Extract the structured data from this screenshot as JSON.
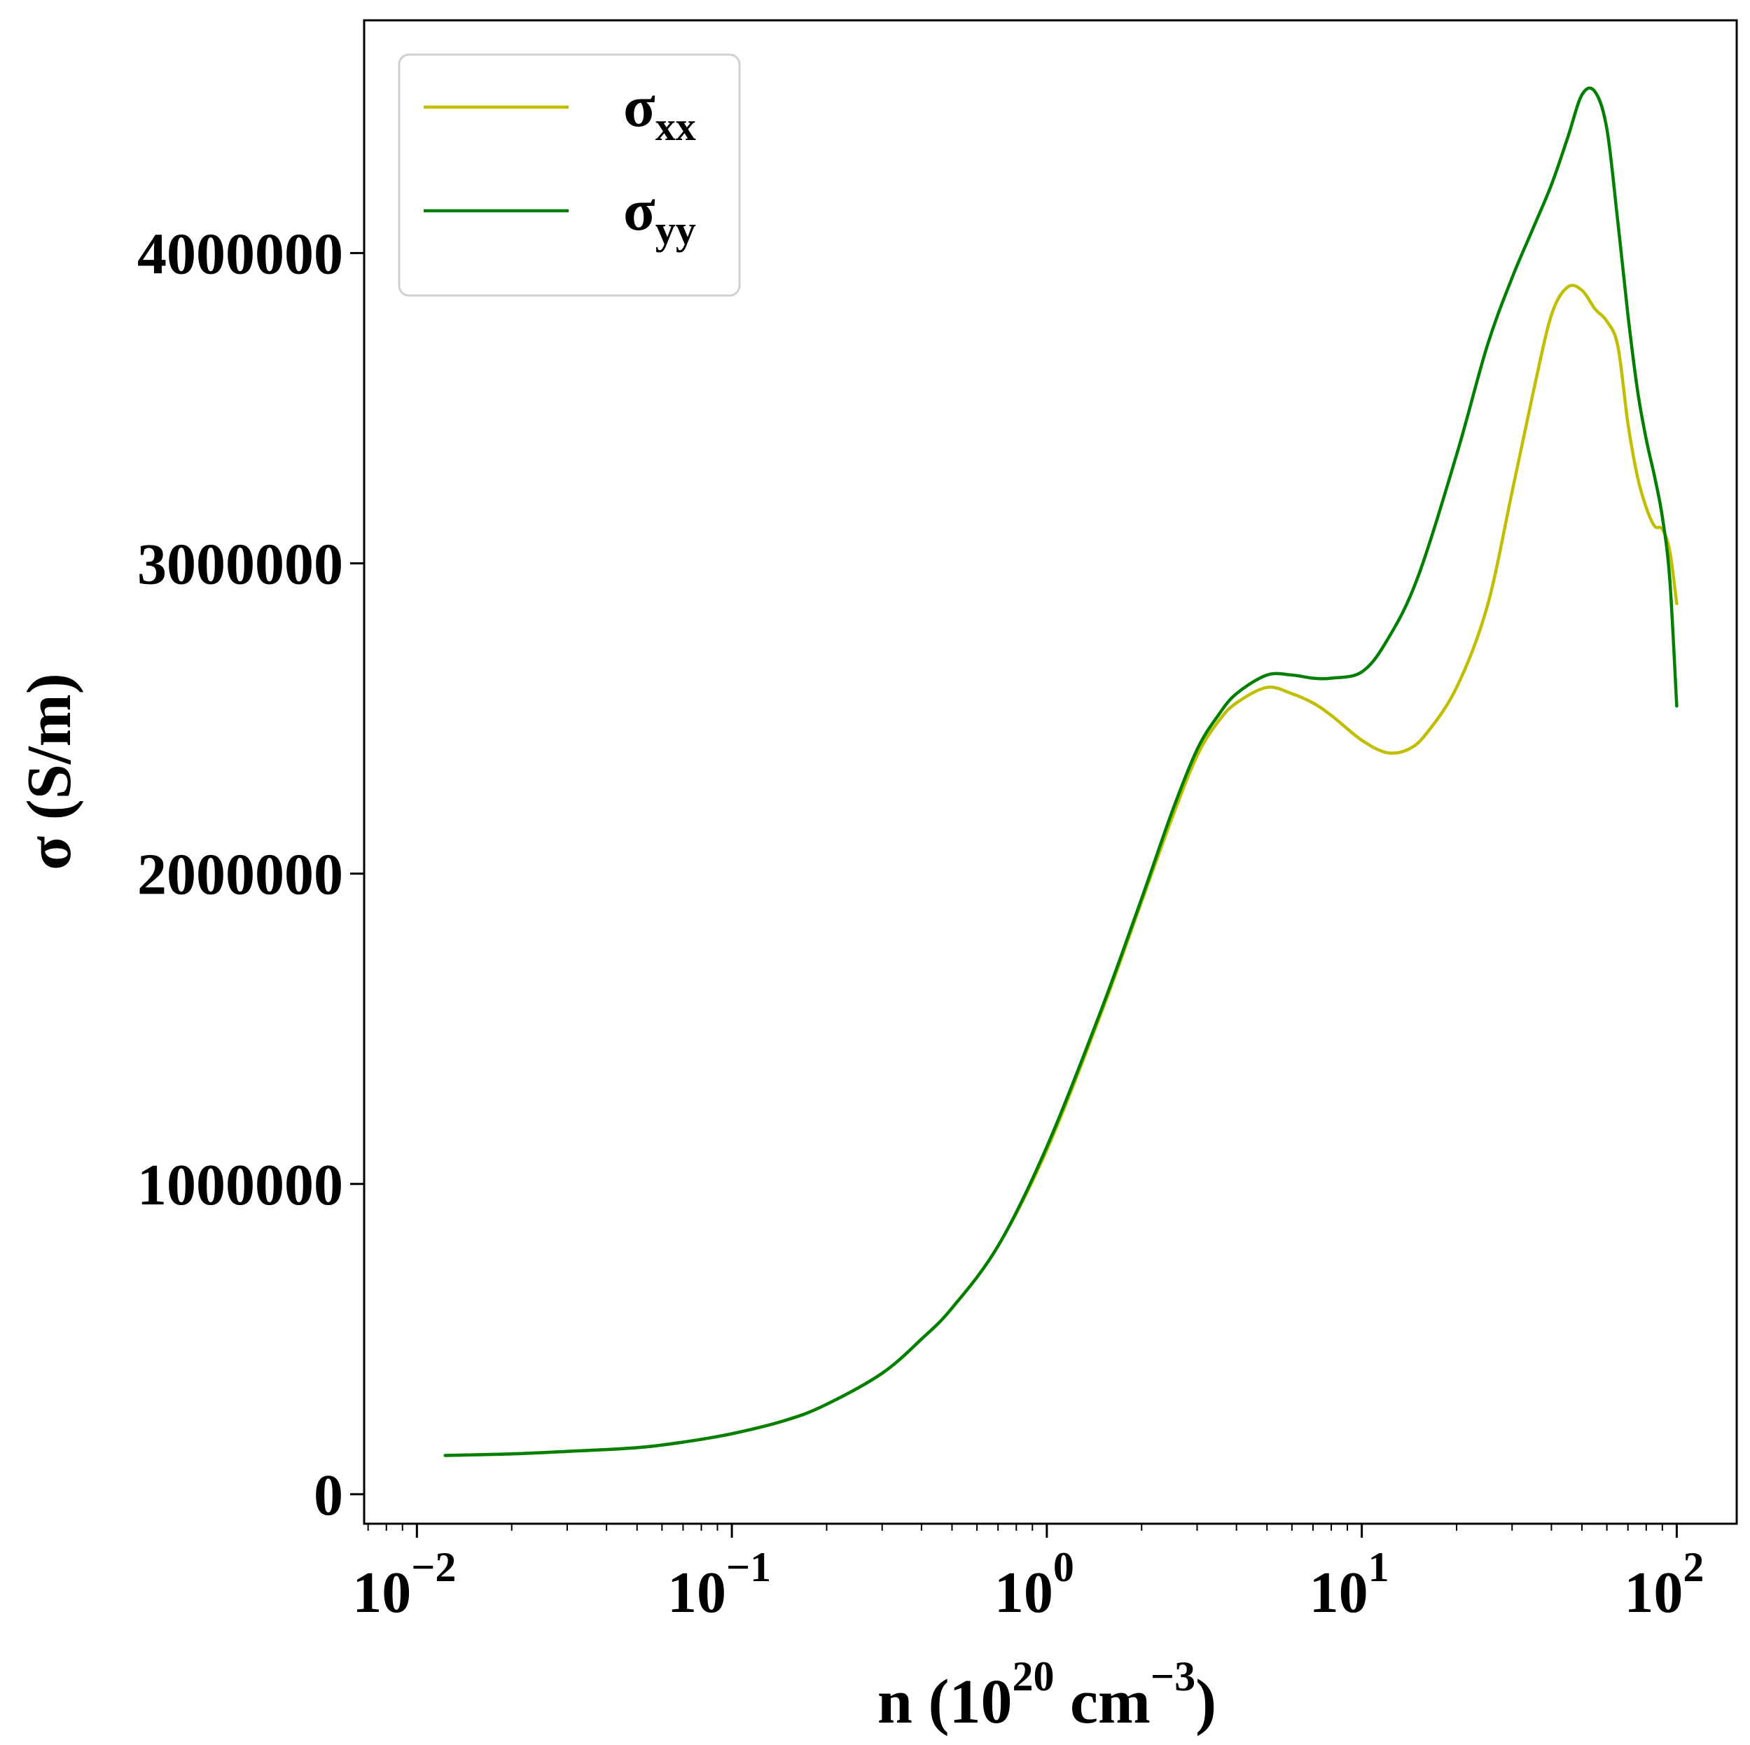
{
  "chart_data": {
    "type": "line",
    "title": "",
    "xlabel": {
      "base": "n (10",
      "exp1": "20",
      "mid": " cm",
      "exp2": "−3",
      "tail": ")"
    },
    "ylabel": "σ (S/m)",
    "xscale": "log",
    "xlim": [
      0.0068,
      155
    ],
    "ylim": [
      -95000,
      4750000
    ],
    "xticks": [
      {
        "value": 0.01,
        "base": "10",
        "exp": "−2"
      },
      {
        "value": 0.1,
        "base": "10",
        "exp": "−1"
      },
      {
        "value": 1,
        "base": "10",
        "exp": "0"
      },
      {
        "value": 10,
        "base": "10",
        "exp": "1"
      },
      {
        "value": 100,
        "base": "10",
        "exp": "2"
      }
    ],
    "yticks": [
      {
        "value": 0,
        "label": "0"
      },
      {
        "value": 1000000,
        "label": "1000000"
      },
      {
        "value": 2000000,
        "label": "2000000"
      },
      {
        "value": 3000000,
        "label": "3000000"
      },
      {
        "value": 4000000,
        "label": "4000000"
      }
    ],
    "grid": false,
    "legend_position": "top-left",
    "series": [
      {
        "name": "σxx",
        "legend_base": "σ",
        "legend_sub": "xx",
        "color": "#bfbf00",
        "points": [
          [
            0.0123,
            125000
          ],
          [
            0.02,
            130000
          ],
          [
            0.03,
            138000
          ],
          [
            0.05,
            150000
          ],
          [
            0.07,
            168000
          ],
          [
            0.1,
            195000
          ],
          [
            0.15,
            240000
          ],
          [
            0.2,
            290000
          ],
          [
            0.3,
            390000
          ],
          [
            0.4,
            500000
          ],
          [
            0.5,
            600000
          ],
          [
            0.7,
            800000
          ],
          [
            1.0,
            1110000
          ],
          [
            1.5,
            1560000
          ],
          [
            2.0,
            1910000
          ],
          [
            2.5,
            2180000
          ],
          [
            3.0,
            2380000
          ],
          [
            3.5,
            2490000
          ],
          [
            4.0,
            2550000
          ],
          [
            5.0,
            2600000
          ],
          [
            6.0,
            2580000
          ],
          [
            7.0,
            2550000
          ],
          [
            8.0,
            2510000
          ],
          [
            10.0,
            2430000
          ],
          [
            12.0,
            2390000
          ],
          [
            14.0,
            2400000
          ],
          [
            16.0,
            2450000
          ],
          [
            20.0,
            2600000
          ],
          [
            25.0,
            2860000
          ],
          [
            30.0,
            3230000
          ],
          [
            35.0,
            3550000
          ],
          [
            40.0,
            3800000
          ],
          [
            45.0,
            3890000
          ],
          [
            50.0,
            3880000
          ],
          [
            55.0,
            3820000
          ],
          [
            60.0,
            3780000
          ],
          [
            65.0,
            3700000
          ],
          [
            70.0,
            3450000
          ],
          [
            75.0,
            3280000
          ],
          [
            80.0,
            3180000
          ],
          [
            85.0,
            3120000
          ],
          [
            90.0,
            3110000
          ],
          [
            95.0,
            3040000
          ],
          [
            100.0,
            2870000
          ]
        ]
      },
      {
        "name": "σyy",
        "legend_base": "σ",
        "legend_sub": "yy",
        "color": "#007f00",
        "points": [
          [
            0.0123,
            125000
          ],
          [
            0.02,
            130000
          ],
          [
            0.03,
            138000
          ],
          [
            0.05,
            150000
          ],
          [
            0.07,
            168000
          ],
          [
            0.1,
            195000
          ],
          [
            0.15,
            240000
          ],
          [
            0.2,
            290000
          ],
          [
            0.3,
            390000
          ],
          [
            0.4,
            500000
          ],
          [
            0.5,
            600000
          ],
          [
            0.7,
            800000
          ],
          [
            1.0,
            1120000
          ],
          [
            1.5,
            1570000
          ],
          [
            2.0,
            1920000
          ],
          [
            2.5,
            2200000
          ],
          [
            3.0,
            2400000
          ],
          [
            3.5,
            2510000
          ],
          [
            4.0,
            2580000
          ],
          [
            5.0,
            2640000
          ],
          [
            6.0,
            2640000
          ],
          [
            7.0,
            2630000
          ],
          [
            8.0,
            2630000
          ],
          [
            10.0,
            2650000
          ],
          [
            12.0,
            2750000
          ],
          [
            15.0,
            2950000
          ],
          [
            20.0,
            3350000
          ],
          [
            25.0,
            3700000
          ],
          [
            30.0,
            3920000
          ],
          [
            35.0,
            4080000
          ],
          [
            40.0,
            4220000
          ],
          [
            45.0,
            4370000
          ],
          [
            50.0,
            4510000
          ],
          [
            55.0,
            4520000
          ],
          [
            60.0,
            4400000
          ],
          [
            65.0,
            4100000
          ],
          [
            70.0,
            3800000
          ],
          [
            75.0,
            3560000
          ],
          [
            80.0,
            3400000
          ],
          [
            85.0,
            3280000
          ],
          [
            90.0,
            3150000
          ],
          [
            95.0,
            2950000
          ],
          [
            100.0,
            2540000
          ]
        ]
      }
    ]
  }
}
